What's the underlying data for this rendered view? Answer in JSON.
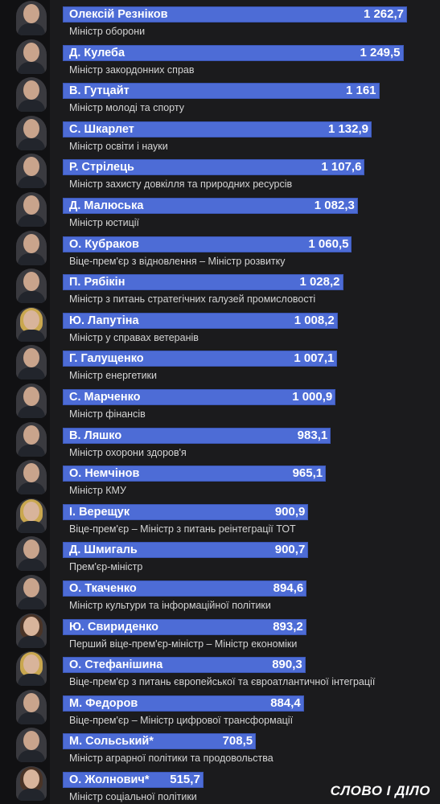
{
  "chart_data": {
    "type": "bar",
    "orientation": "horizontal",
    "bar_color": "#4d6cd6",
    "categories": [
      "Олексій Резніков",
      "Д. Кулеба",
      "В. Гутцайт",
      "С. Шкарлет",
      "Р. Стрілець",
      "Д. Малюська",
      "О. Кубраков",
      "П. Рябікін",
      "Ю. Лапутіна",
      "Г. Галущенко",
      "С. Марченко",
      "В. Ляшко",
      "О. Немчінов",
      "І. Верещук",
      "Д. Шмигаль",
      "О. Ткаченко",
      "Ю. Свириденко",
      "О. Стефанішина",
      "М. Федоров",
      "М. Сольський*",
      "О. Жолнович*"
    ],
    "values": [
      1262.7,
      1249.5,
      1161,
      1132.9,
      1107.6,
      1082.3,
      1060.5,
      1028.2,
      1008.2,
      1007.1,
      1000.9,
      983.1,
      965.1,
      900.9,
      900.7,
      894.6,
      893.2,
      890.3,
      884.4,
      708.5,
      515.7
    ],
    "value_labels": [
      "1 262,7",
      "1 249,5",
      "1 161",
      "1 132,9",
      "1 107,6",
      "1 082,3",
      "1 060,5",
      "1 028,2",
      "1 008,2",
      "1 007,1",
      "1 000,9",
      "983,1",
      "965,1",
      "900,9",
      "900,7",
      "894,6",
      "893,2",
      "890,3",
      "884,4",
      "708,5",
      "515,7"
    ],
    "roles": [
      "Міністр оборони",
      "Міністр закордонних справ",
      "Міністр молоді та спорту",
      "Міністр освіти і науки",
      "Міністр захисту довкілля та природних ресурсів",
      "Міністр юстиції",
      "Віце-прем'єр з відновлення – Міністр розвитку",
      "Міністр з питань стратегічних галузей промисловості",
      "Міністр у справах ветеранів",
      "Міністр енергетики",
      "Міністр фінансів",
      "Міністр охорони здоров'я",
      "Міністр КМУ",
      "Віце-прем'єр – Міністр з питань реінтеграції ТОТ",
      "Прем'єр-міністр",
      "Міністр культури та інформаційної політики",
      "Перший віце-прем'єр-міністр – Міністр економіки",
      "Віце-прем'єр з питань європейської та євроатлантичної інтеграції",
      "Віце-прем'єр – Міністр цифрової трансформації",
      "Міністр аграрної політики та продовольства",
      "Міністр соціальної політики"
    ],
    "portraits": [
      "male",
      "male",
      "male",
      "male",
      "male",
      "male",
      "male",
      "male",
      "female",
      "male",
      "male",
      "male",
      "male",
      "female",
      "male",
      "male",
      "female-dark",
      "female",
      "male",
      "male",
      "female-dark"
    ]
  },
  "logo": "СЛОВО І ДІЛО"
}
